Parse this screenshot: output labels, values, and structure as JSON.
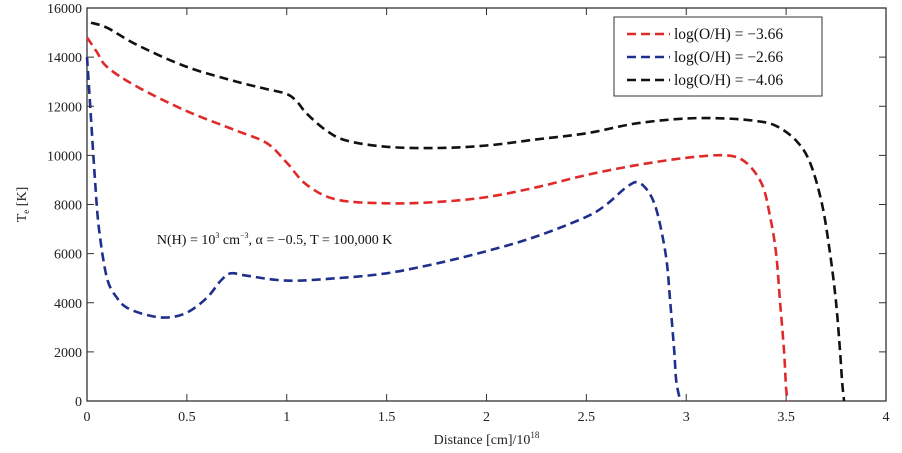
{
  "chart_data": {
    "type": "line",
    "title": "",
    "xlabel": "Distance [cm]/10",
    "xlabel_sup": "18",
    "ylabel": "T",
    "ylabel_sub": "e",
    "ylabel_unit": " [K]",
    "xlim": [
      0,
      4
    ],
    "ylim": [
      0,
      16000
    ],
    "xticks": [
      0,
      0.5,
      1,
      1.5,
      2,
      2.5,
      3,
      3.5,
      4
    ],
    "xtick_labels": [
      "0",
      "0.5",
      "1",
      "1.5",
      "2",
      "2.5",
      "3",
      "3.5",
      "4"
    ],
    "yticks": [
      0,
      2000,
      4000,
      6000,
      8000,
      10000,
      12000,
      14000,
      16000
    ],
    "ytick_labels": [
      "0",
      "2000",
      "4000",
      "6000",
      "8000",
      "10000",
      "12000",
      "14000",
      "16000"
    ],
    "grid": false,
    "legend_position": "top-right",
    "annotation": {
      "parts": [
        "N(H) = 10",
        "3",
        " cm",
        "−3",
        ", α = −0.5, T = 100,000 K"
      ],
      "x": 0.35,
      "y": 6400
    },
    "series": [
      {
        "name": "log(O/H) = −3.66",
        "color": "#e02a2a",
        "style": "dashed",
        "x": [
          0.0,
          0.05,
          0.1,
          0.25,
          0.5,
          0.75,
          0.9,
          1.0,
          1.1,
          1.25,
          1.5,
          1.75,
          2.0,
          2.25,
          2.5,
          2.75,
          3.0,
          3.2,
          3.3,
          3.38,
          3.42,
          3.45,
          3.47,
          3.49,
          3.5,
          3.51
        ],
        "y": [
          14800,
          14200,
          13600,
          12800,
          11800,
          11000,
          10500,
          9700,
          8800,
          8200,
          8050,
          8100,
          8300,
          8700,
          9200,
          9600,
          9900,
          10000,
          9700,
          8800,
          7500,
          6000,
          4000,
          2000,
          500,
          0
        ]
      },
      {
        "name": "log(O/H) = −2.66",
        "color": "#1f2f8c",
        "style": "dashed",
        "x": [
          0.0,
          0.02,
          0.04,
          0.06,
          0.1,
          0.15,
          0.2,
          0.3,
          0.4,
          0.5,
          0.6,
          0.67,
          0.72,
          0.8,
          1.0,
          1.25,
          1.5,
          1.75,
          2.0,
          2.25,
          2.5,
          2.6,
          2.7,
          2.76,
          2.82,
          2.86,
          2.9,
          2.92,
          2.94,
          2.95,
          2.97
        ],
        "y": [
          14000,
          11500,
          9000,
          7000,
          5000,
          4200,
          3800,
          3500,
          3400,
          3600,
          4200,
          4900,
          5200,
          5100,
          4900,
          5000,
          5200,
          5600,
          6100,
          6700,
          7500,
          8000,
          8700,
          8900,
          8400,
          7500,
          5800,
          4000,
          2000,
          800,
          0
        ]
      },
      {
        "name": "log(O/H) = −4.06",
        "color": "#111111",
        "style": "dashed",
        "x": [
          0.02,
          0.1,
          0.25,
          0.5,
          0.75,
          0.9,
          1.0,
          1.05,
          1.1,
          1.2,
          1.3,
          1.5,
          1.75,
          2.0,
          2.25,
          2.5,
          2.75,
          3.0,
          3.2,
          3.35,
          3.45,
          3.55,
          3.62,
          3.68,
          3.72,
          3.75,
          3.77,
          3.78,
          3.79
        ],
        "y": [
          15400,
          15200,
          14500,
          13600,
          13000,
          12700,
          12500,
          12200,
          11700,
          11000,
          10600,
          10350,
          10300,
          10400,
          10650,
          10900,
          11300,
          11500,
          11500,
          11400,
          11200,
          10600,
          9700,
          8000,
          6000,
          4000,
          2000,
          800,
          0
        ]
      }
    ]
  }
}
